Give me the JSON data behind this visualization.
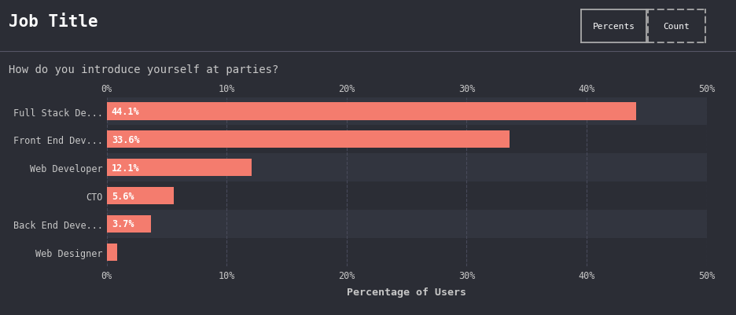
{
  "title": "Job Title",
  "subtitle": "How do you introduce yourself at parties?",
  "xlabel": "Percentage of Users",
  "categories": [
    "Full Stack De...",
    "Front End Dev...",
    "Web Developer",
    "CTO",
    "Back End Deve...",
    "Web Designer"
  ],
  "values": [
    44.1,
    33.6,
    12.1,
    5.6,
    3.7,
    0.9
  ],
  "labels": [
    "44.1%",
    "33.6%",
    "12.1%",
    "5.6%",
    "3.7%",
    ""
  ],
  "bar_color": "#f47c6e",
  "bg_color": "#2b2d35",
  "row_color_dark": "#2b2d35",
  "row_color_light": "#32353f",
  "text_color": "#c8c8c8",
  "grid_color": "#484a5a",
  "xlim": [
    0,
    50
  ],
  "xticks": [
    0,
    10,
    20,
    30,
    40,
    50
  ],
  "xticklabels": [
    "0%",
    "10%",
    "20%",
    "30%",
    "40%",
    "50%"
  ],
  "title_fontsize": 15,
  "subtitle_fontsize": 10,
  "label_fontsize": 8.5,
  "tick_fontsize": 8.5,
  "bar_height": 0.62,
  "font_family": "monospace",
  "header_line_color": "#555566",
  "btn_border_color": "#aaaaaa"
}
